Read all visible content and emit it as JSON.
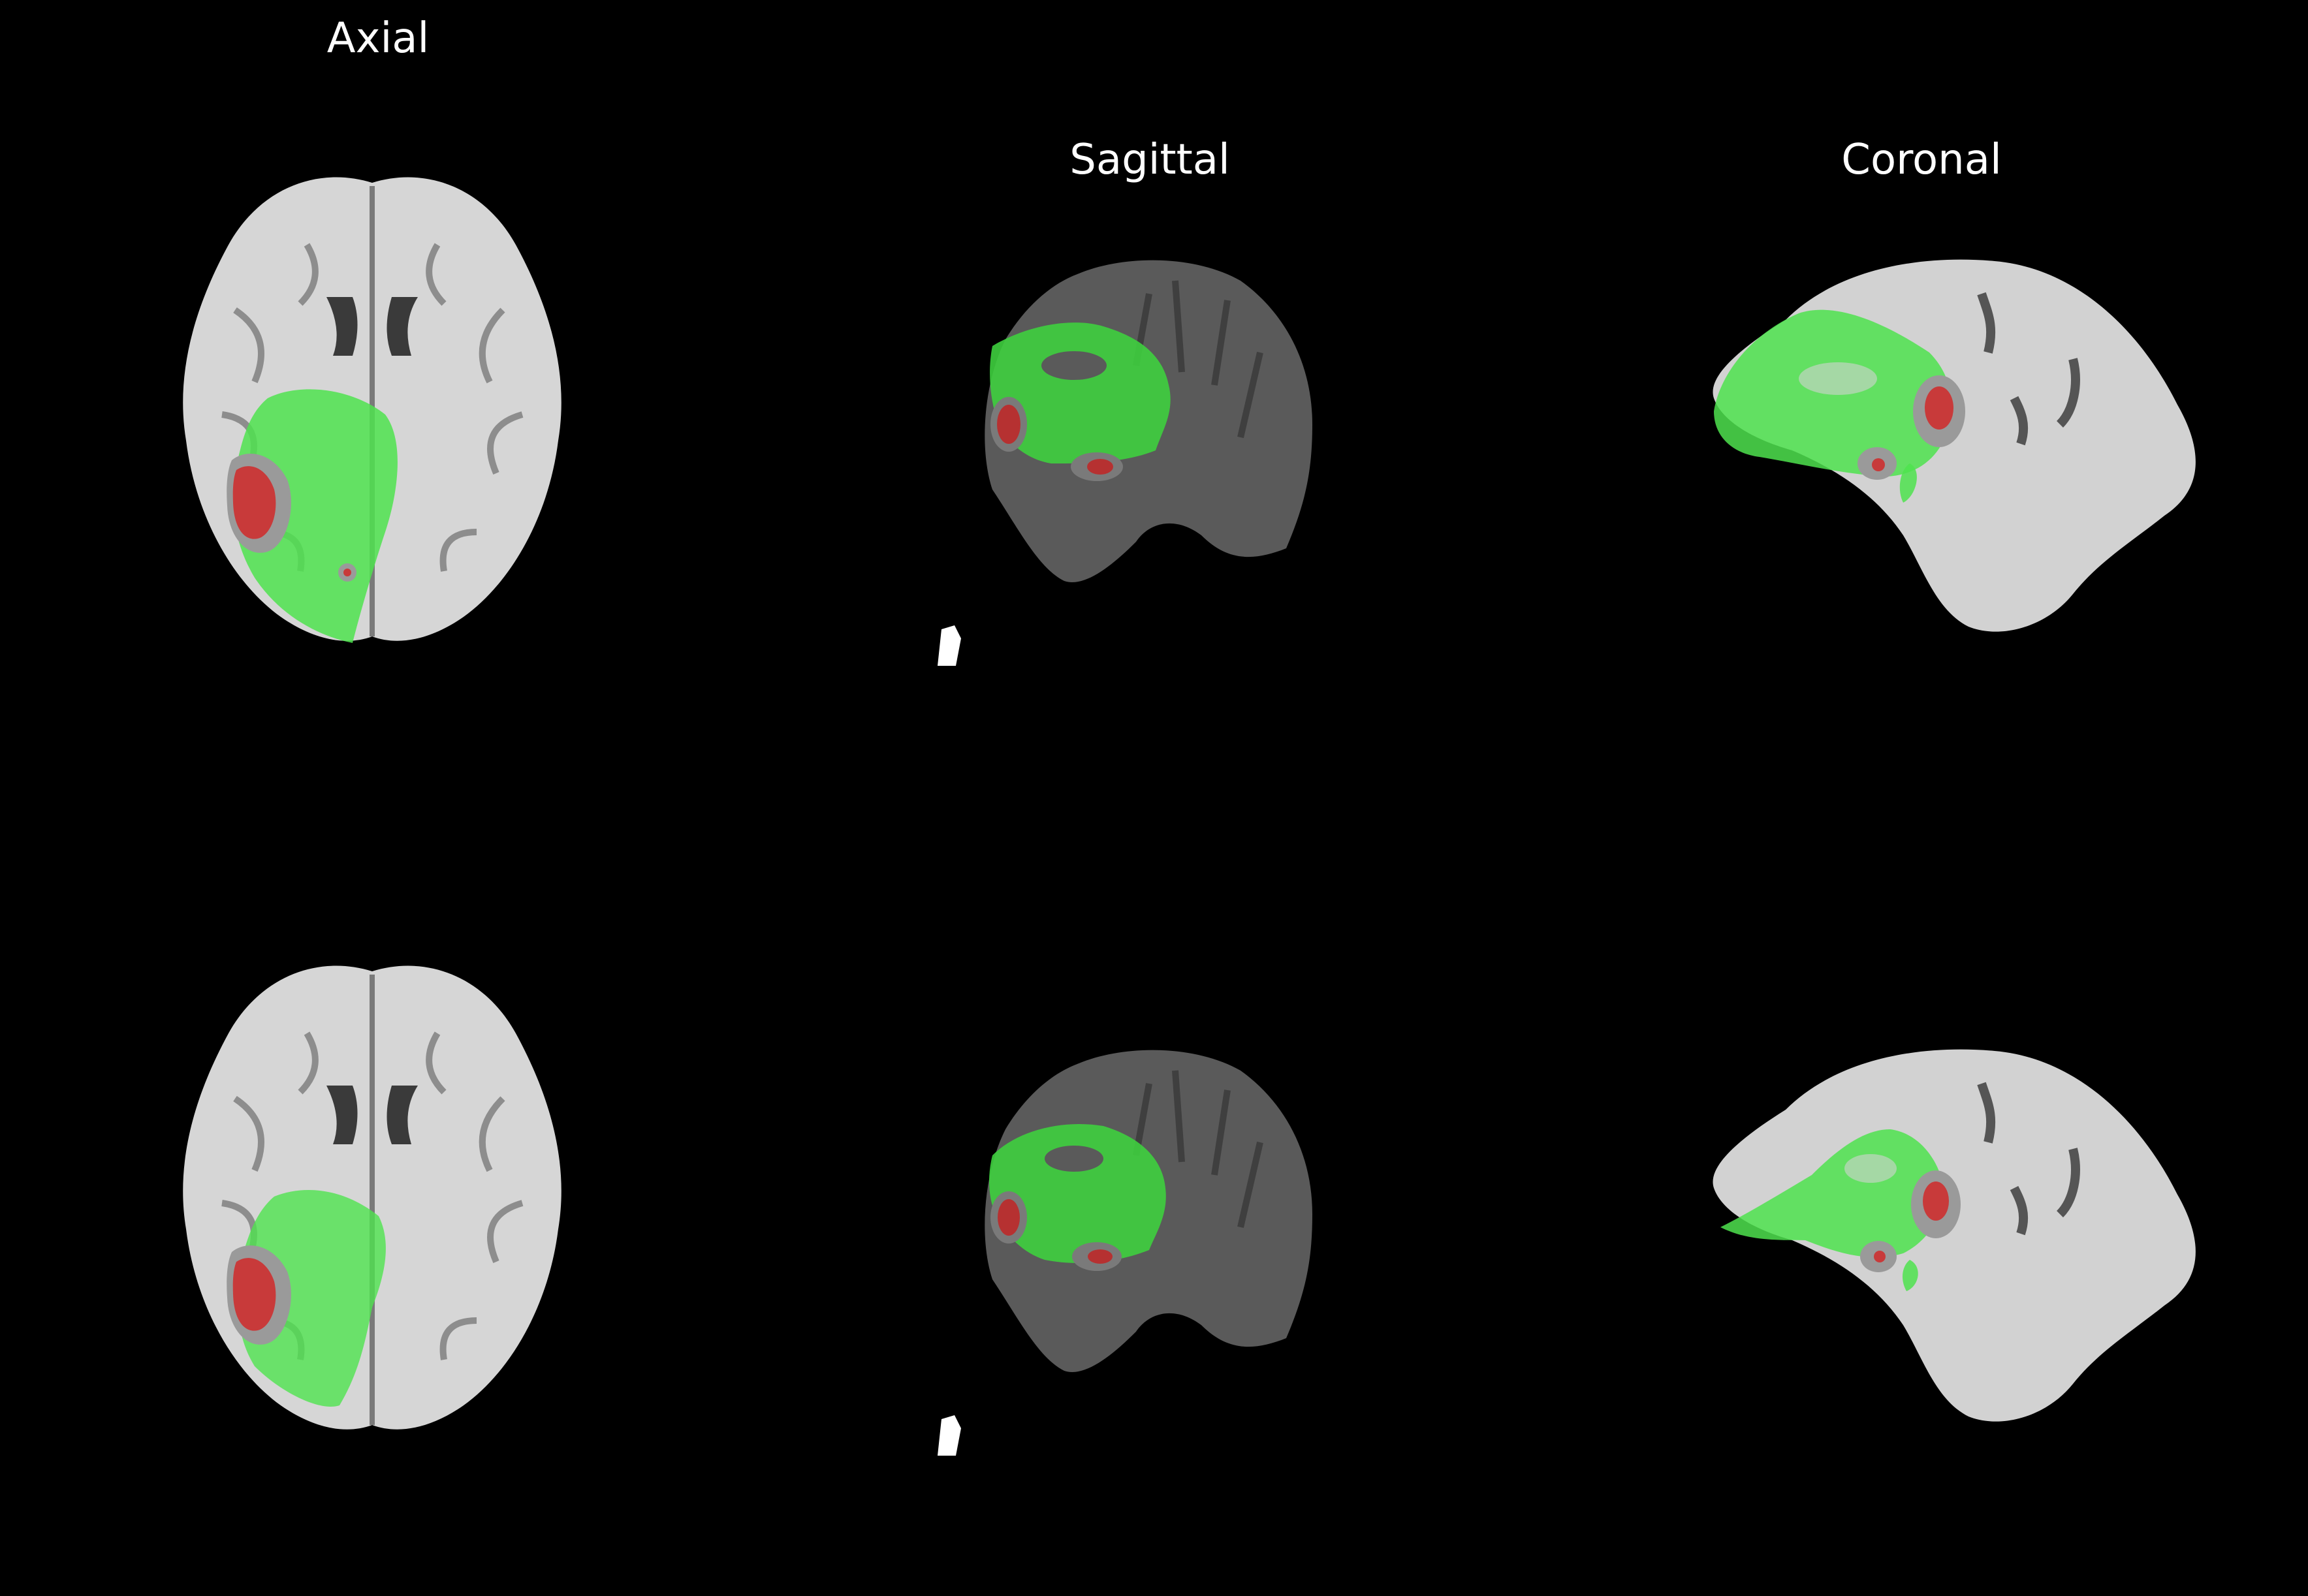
{
  "figure": {
    "background": "#000000",
    "titles": {
      "axial": "Axial",
      "sagittal": "Sagittal",
      "coronal": "Coronal"
    }
  },
  "panels": [
    {
      "id": "top-axial",
      "row": 1,
      "view": "axial",
      "tissue_colour": "#d6d6d6"
    },
    {
      "id": "top-sagittal",
      "row": 1,
      "view": "sagittal",
      "tissue_colour": "#5a5a5a"
    },
    {
      "id": "top-coronal",
      "row": 1,
      "view": "coronal",
      "tissue_colour": "#d2d2d2"
    },
    {
      "id": "bottom-axial",
      "row": 2,
      "view": "axial",
      "tissue_colour": "#d6d6d6"
    },
    {
      "id": "bottom-sagittal",
      "row": 2,
      "view": "sagittal",
      "tissue_colour": "#5a5a5a"
    },
    {
      "id": "bottom-coronal",
      "row": 2,
      "view": "coronal",
      "tissue_colour": "#d2d2d2"
    }
  ],
  "overlay_colours": {
    "edema": "#4fe34f",
    "tumour_core": "#c83a3a",
    "necrosis_ring": "#9a9a9a"
  }
}
